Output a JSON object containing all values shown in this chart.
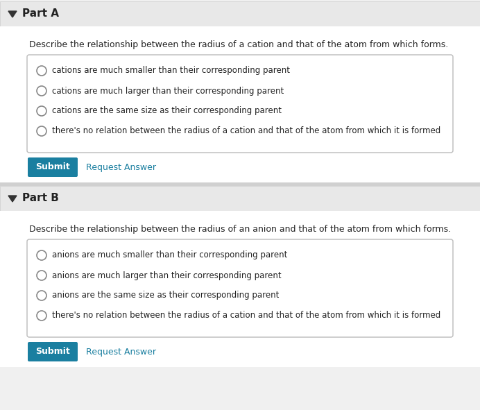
{
  "bg_color": "#f0f0f0",
  "white_bg": "#ffffff",
  "part_a_header": "Part A",
  "part_b_header": "Part B",
  "part_a_question": "Describe the relationship between the radius of a cation and that of the atom from which forms.",
  "part_b_question": "Describe the relationship between the radius of an anion and that of the atom from which forms.",
  "part_a_options": [
    "cations are much smaller than their corresponding parent",
    "cations are much larger than their corresponding parent",
    "cations are the same size as their corresponding parent",
    "there's no relation between the radius of a cation and that of the atom from which it is formed"
  ],
  "part_b_options": [
    "anions are much smaller than their corresponding parent",
    "anions are much larger than their corresponding parent",
    "anions are the same size as their corresponding parent",
    "there's no relation between the radius of a cation and that of the atom from which it is formed"
  ],
  "submit_color": "#1a7fa0",
  "submit_text_color": "#ffffff",
  "request_answer_color": "#1a7fa0",
  "header_bg": "#e8e8e8",
  "box_border_color": "#bbbbbb",
  "text_color": "#222222",
  "font_size_header": 11,
  "font_size_question": 9,
  "font_size_option": 8.5,
  "font_size_button": 9
}
